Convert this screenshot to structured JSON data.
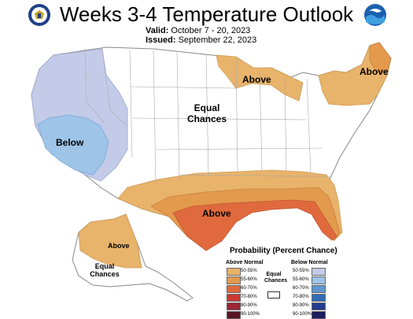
{
  "header": {
    "title": "Weeks 3-4 Temperature Outlook",
    "valid_label": "Valid:",
    "valid_value": "October 7 - 20, 2023",
    "issued_label": "Issued:",
    "issued_value": "September 22, 2023"
  },
  "logos": {
    "left": "doc-seal-icon",
    "right": "noaa-logo-icon"
  },
  "map_labels": {
    "above_northern_plains": "Above",
    "above_northeast": "Above",
    "above_south": "Above",
    "above_alaska": "Above",
    "below_west": "Below",
    "equal_chances_center_line1": "Equal",
    "equal_chances_center_line2": "Chances",
    "equal_chances_alaska_line1": "Equal",
    "equal_chances_alaska_line2": "Chances"
  },
  "legend": {
    "title": "Probability (Percent Chance)",
    "above_header": "Above Normal",
    "below_header": "Below Normal",
    "equal_line1": "Equal",
    "equal_line2": "Chances",
    "above": [
      {
        "label": "50-55%",
        "color": "#e8b36a"
      },
      {
        "label": "55-60%",
        "color": "#e39a4d"
      },
      {
        "label": "60-70%",
        "color": "#e06a3e"
      },
      {
        "label": "70-80%",
        "color": "#c93b31"
      },
      {
        "label": "80-90%",
        "color": "#9c2535"
      },
      {
        "label": "90-100%",
        "color": "#5a1523"
      }
    ],
    "below": [
      {
        "label": "50-55%",
        "color": "#c3cbe8"
      },
      {
        "label": "55-60%",
        "color": "#9ec4e8"
      },
      {
        "label": "60-70%",
        "color": "#5d97cf"
      },
      {
        "label": "70-80%",
        "color": "#2f6eb5"
      },
      {
        "label": "80-90%",
        "color": "#233e8f"
      },
      {
        "label": "90-100%",
        "color": "#1a1c5e"
      }
    ]
  },
  "colors": {
    "above_50_55": "#e8b36a",
    "above_55_60": "#e39a4d",
    "above_60_70": "#e06a3e",
    "below_50_55": "#c3cbe8",
    "below_55_60": "#9ec4e8",
    "border": "#888888"
  }
}
